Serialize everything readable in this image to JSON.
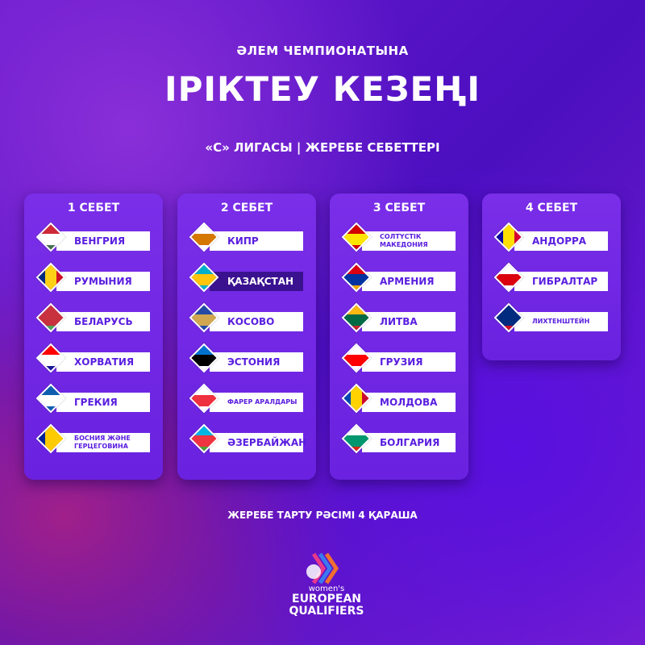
{
  "header": {
    "subtitle": "ӘЛЕМ ЧЕМПИОНАТЫНА",
    "title": "ІРІКТЕУ КЕЗЕҢІ",
    "league": "«С» ЛИГАСЫ | ЖЕРЕБЕ СЕБЕТТЕРІ"
  },
  "pots": [
    {
      "title": "1 СЕБЕТ",
      "teams": [
        {
          "name": "ВЕНГРИЯ",
          "flag": [
            "#ce2939",
            "#ffffff",
            "#477050"
          ]
        },
        {
          "name": "РУМЫНИЯ",
          "flag": [
            "#002b7f",
            "#fcd116",
            "#ce1126"
          ],
          "vertical": true
        },
        {
          "name": "БЕЛАРУСЬ",
          "flag": [
            "#c8313e",
            "#c8313e",
            "#4aa657"
          ]
        },
        {
          "name": "ХОРВАТИЯ",
          "flag": [
            "#ff0000",
            "#ffffff",
            "#171796"
          ]
        },
        {
          "name": "ГРЕКИЯ",
          "flag": [
            "#0d5eaf",
            "#ffffff",
            "#0d5eaf"
          ]
        },
        {
          "name": "БОСНИЯ ЖӘНЕ ГЕРЦЕГОВИНА",
          "flag": [
            "#002395",
            "#fecb00",
            "#fecb00"
          ],
          "vertical": true,
          "small": true
        }
      ]
    },
    {
      "title": "2 СЕБЕТ",
      "teams": [
        {
          "name": "КИПР",
          "flag": [
            "#ffffff",
            "#d57800",
            "#ffffff"
          ]
        },
        {
          "name": "ҚАЗАҚСТАН",
          "flag": [
            "#00afca",
            "#fec50c",
            "#00afca"
          ],
          "highlight": true
        },
        {
          "name": "КОСОВО",
          "flag": [
            "#244aa5",
            "#d0a650",
            "#244aa5"
          ]
        },
        {
          "name": "ЭСТОНИЯ",
          "flag": [
            "#0072ce",
            "#000000",
            "#ffffff"
          ]
        },
        {
          "name": "ФАРЕР АРАЛДАРЫ",
          "flag": [
            "#ffffff",
            "#ef303e",
            "#ffffff"
          ],
          "small": true
        },
        {
          "name": "ӘЗЕРБАЙЖАН",
          "flag": [
            "#00b5e2",
            "#ef3340",
            "#509e2f"
          ]
        }
      ]
    },
    {
      "title": "3 СЕБЕТ",
      "teams": [
        {
          "name": "СОЛТҮСТІК МАКЕДОНИЯ",
          "flag": [
            "#d20000",
            "#ffe600",
            "#d20000"
          ],
          "small": true
        },
        {
          "name": "АРМЕНИЯ",
          "flag": [
            "#d90012",
            "#0033a0",
            "#f2a800"
          ]
        },
        {
          "name": "ЛИТВА",
          "flag": [
            "#fdb913",
            "#006a44",
            "#c1272d"
          ]
        },
        {
          "name": "ГРУЗИЯ",
          "flag": [
            "#ffffff",
            "#ff0000",
            "#ffffff"
          ]
        },
        {
          "name": "МОЛДОВА",
          "flag": [
            "#0046ae",
            "#ffd200",
            "#cc092f"
          ],
          "vertical": true
        },
        {
          "name": "БОЛГАРИЯ",
          "flag": [
            "#ffffff",
            "#00966e",
            "#d62612"
          ]
        }
      ]
    },
    {
      "title": "4 СЕБЕТ",
      "teams": [
        {
          "name": "АНДОРРА",
          "flag": [
            "#10069f",
            "#fedf00",
            "#d50032"
          ],
          "vertical": true
        },
        {
          "name": "ГИБРАЛТАР",
          "flag": [
            "#ffffff",
            "#da000c",
            "#ffffff"
          ]
        },
        {
          "name": "ЛИХТЕНШТЕЙН",
          "flag": [
            "#002b7f",
            "#002b7f",
            "#ce1126"
          ],
          "small": true
        }
      ]
    }
  ],
  "footer": "ЖЕРЕБЕ ТАРТУ РӘСІМІ 4 ҚАРАША",
  "logo": {
    "line1": "women's",
    "line2": "EUROPEAN",
    "line3": "QUALIFIERS"
  }
}
